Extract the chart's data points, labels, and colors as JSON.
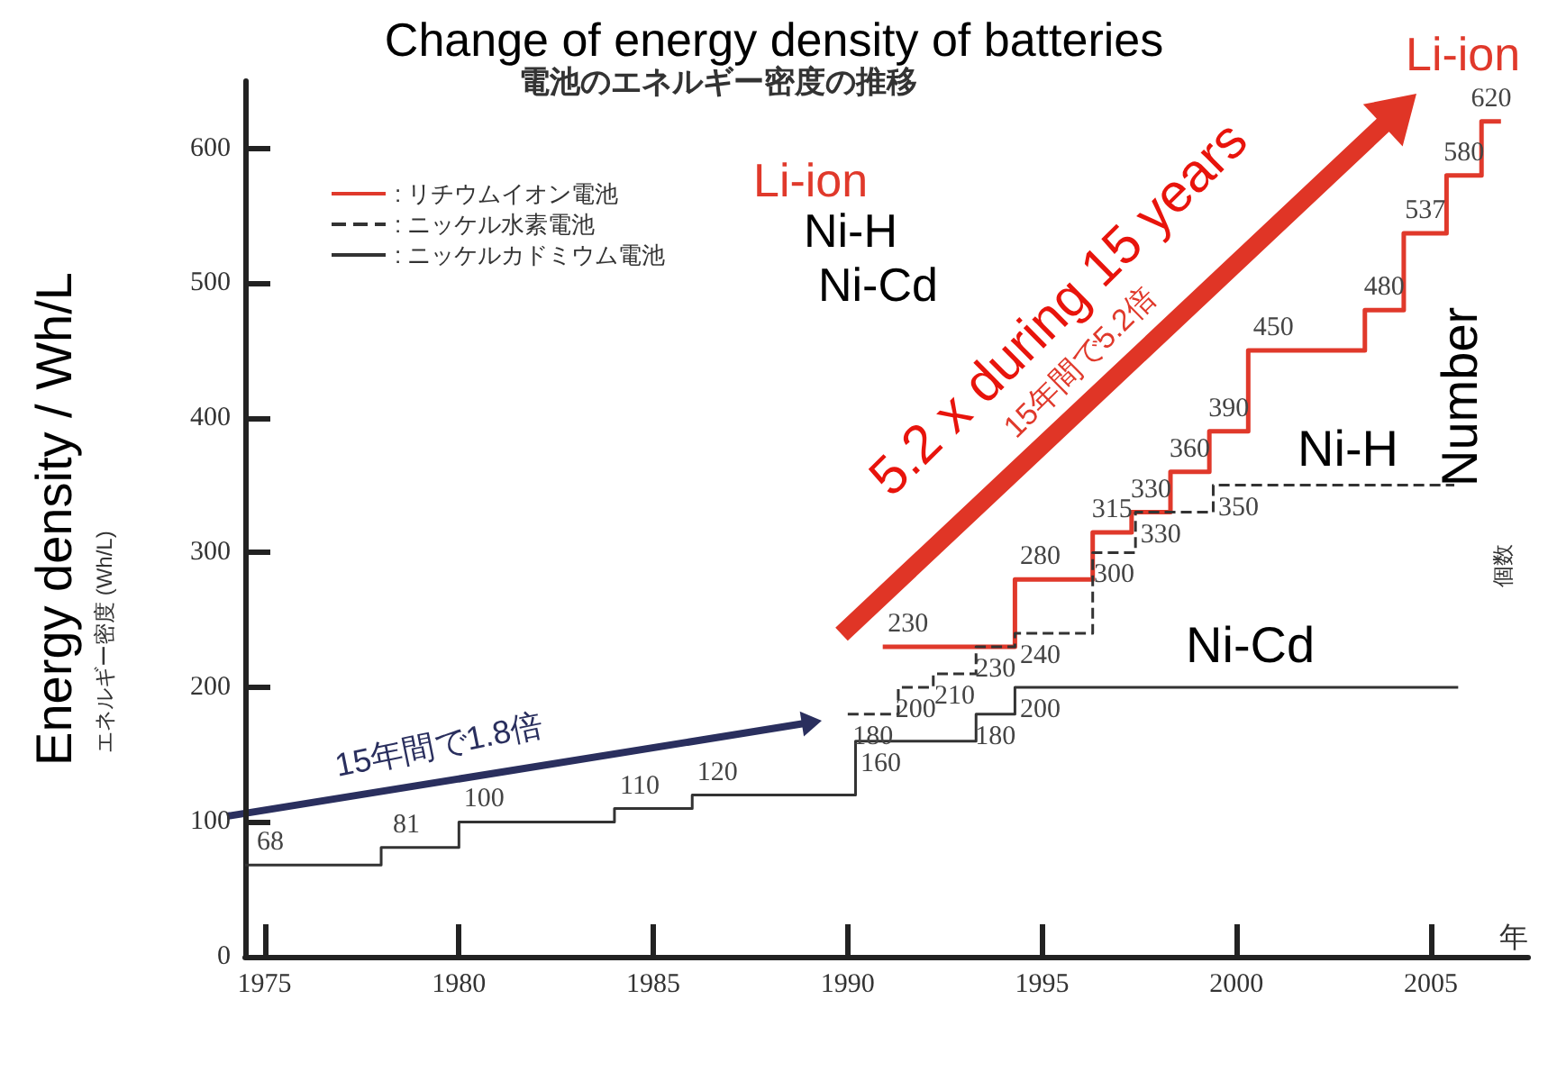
{
  "chart_data": {
    "type": "step",
    "title": "Change of energy density of batteries",
    "subtitle": "電池のエネルギー密度の推移",
    "xlabel": "年",
    "ylabel": "Energy density / Wh/L",
    "xlim": [
      1974.5,
      2007.5
    ],
    "xticks": [
      1975,
      1980,
      1985,
      1990,
      1995,
      2000,
      2005
    ],
    "ylim": [
      0,
      650
    ],
    "yticks": [
      0,
      100,
      200,
      300,
      400,
      500,
      600
    ],
    "grid": false,
    "legend": "top left",
    "marker": "none",
    "series": [
      {
        "name": ": リチウムイオン電池",
        "color": "#e0392b",
        "line_style": "solid",
        "x": [
          1990.9,
          1994.3,
          1996.3,
          1997.3,
          1998.3,
          1999.3,
          2000.3,
          2003.3,
          2004.3,
          2005.4,
          2006.3,
          2006.8
        ],
        "values": [
          230,
          280,
          315,
          330,
          360,
          390,
          450,
          480,
          537,
          580,
          620,
          620
        ],
        "value_labels": [
          "230",
          "280",
          "315",
          "330",
          "360",
          "390",
          "450",
          "480",
          "537",
          "580",
          "620",
          null
        ]
      },
      {
        "name": ": ニッケル水素電池",
        "color": "#333333",
        "line_style": "dashed",
        "x": [
          1990,
          1991.3,
          1992.2,
          1993.3,
          1994.3,
          1996.3,
          1997.4,
          1999.4,
          2005.6
        ],
        "values": [
          180,
          200,
          210,
          230,
          240,
          300,
          330,
          350,
          350
        ],
        "value_labels": [
          "180",
          "200",
          "210",
          "230",
          "240",
          "300",
          "330",
          "350",
          null
        ]
      },
      {
        "name": ": ニッケルカドミウム電池",
        "color": "#333333",
        "line_style": "solid",
        "x": [
          1974.5,
          1978,
          1980,
          1984,
          1986,
          1990.2,
          1993.3,
          1994.3,
          2005.7
        ],
        "values": [
          68,
          81,
          100,
          110,
          120,
          160,
          180,
          200,
          200
        ],
        "value_labels": [
          "68",
          "81",
          "100",
          "110",
          "120",
          "160",
          "180",
          "200",
          null
        ]
      }
    ],
    "annotations": [
      "Li-ion",
      "Ni-H",
      "Ni-Cd",
      "Ni-H",
      "Ni-Cd",
      "Li-ion",
      "15年間で1.8倍",
      "5.2 x during 15 years",
      "15年間で5.2倍",
      "エネルギー密度 (Wh/L)",
      "Number",
      "個数"
    ]
  }
}
